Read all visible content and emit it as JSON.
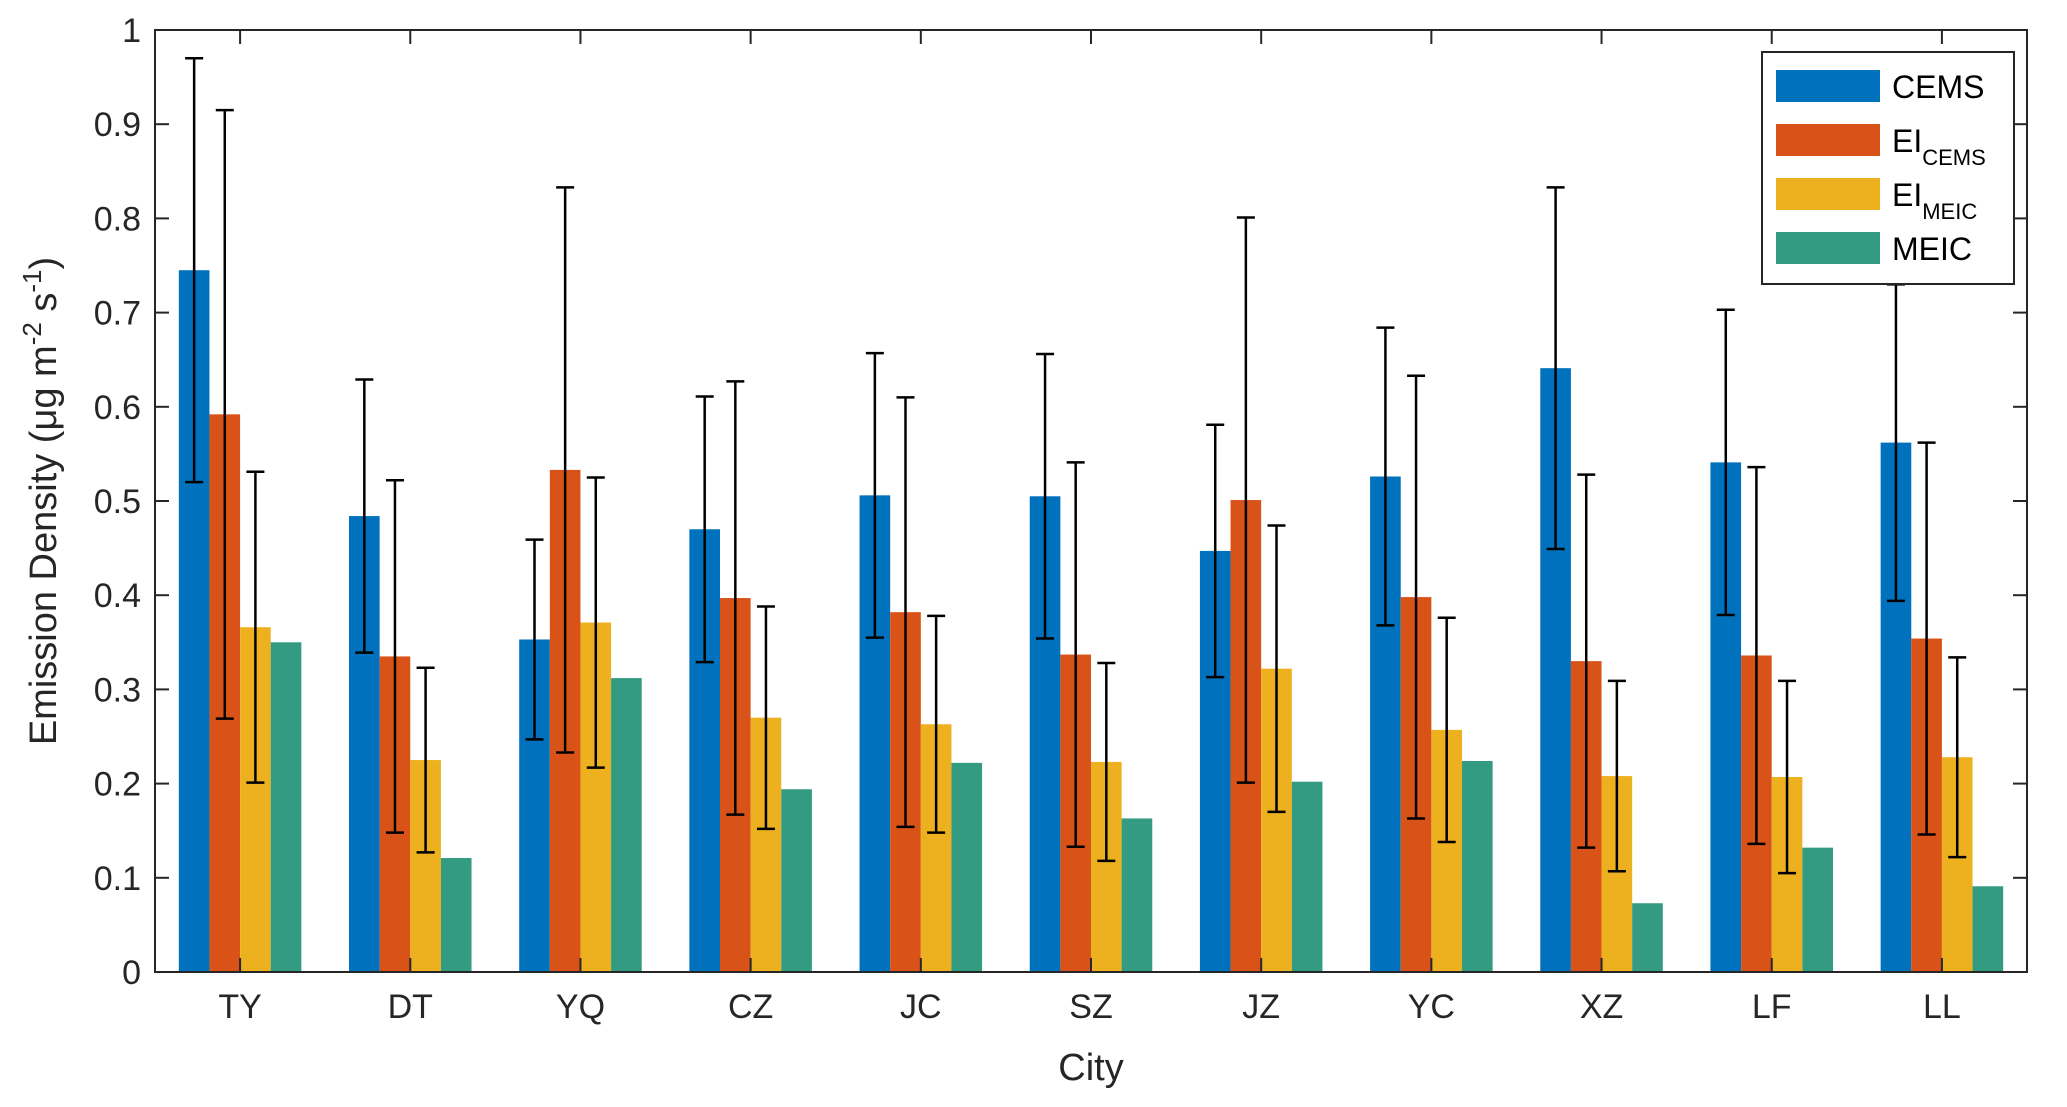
{
  "chart_data": {
    "type": "bar",
    "xlabel": "City",
    "ylabel": "Emission Density (μg m⁻² s⁻¹)",
    "ylabel_parts": [
      "Emission Density (μg m",
      "-2",
      " s",
      "-1",
      ")"
    ],
    "ylim": [
      0,
      1
    ],
    "yticks": [
      "0",
      "0.1",
      "0.2",
      "0.3",
      "0.4",
      "0.5",
      "0.6",
      "0.7",
      "0.8",
      "0.9",
      "1"
    ],
    "categories": [
      "TY",
      "DT",
      "YQ",
      "CZ",
      "JC",
      "SZ",
      "JZ",
      "YC",
      "XZ",
      "LF",
      "LL"
    ],
    "legend_position": "top-right",
    "series": [
      {
        "name": "CEMS",
        "name_main": "CEMS",
        "name_sub": "",
        "color": "#0072BD",
        "values": [
          0.745,
          0.484,
          0.353,
          0.47,
          0.506,
          0.505,
          0.447,
          0.526,
          0.641,
          0.541,
          0.562
        ],
        "error": [
          0.225,
          0.145,
          0.106,
          0.141,
          0.151,
          0.151,
          0.134,
          0.158,
          0.192,
          0.162,
          0.168
        ]
      },
      {
        "name": "EICEMS",
        "name_main": "EI",
        "name_sub": "CEMS",
        "color": "#D95319",
        "values": [
          0.592,
          0.335,
          0.533,
          0.397,
          0.382,
          0.337,
          0.501,
          0.398,
          0.33,
          0.336,
          0.354
        ],
        "error": [
          0.323,
          0.187,
          0.3,
          0.23,
          0.228,
          0.204,
          0.3,
          0.235,
          0.198,
          0.2,
          0.208
        ]
      },
      {
        "name": "EIMEIC",
        "name_main": "EI",
        "name_sub": "MEIC",
        "color": "#EDB120",
        "values": [
          0.366,
          0.225,
          0.371,
          0.27,
          0.263,
          0.223,
          0.322,
          0.257,
          0.208,
          0.207,
          0.228
        ],
        "error": [
          0.165,
          0.098,
          0.154,
          0.118,
          0.115,
          0.105,
          0.152,
          0.119,
          0.101,
          0.102,
          0.106
        ]
      },
      {
        "name": "MEIC",
        "name_main": "MEIC",
        "name_sub": "",
        "color": "#339B82",
        "values": [
          0.35,
          0.121,
          0.312,
          0.194,
          0.222,
          0.163,
          0.202,
          0.224,
          0.073,
          0.132,
          0.091
        ]
      }
    ]
  }
}
